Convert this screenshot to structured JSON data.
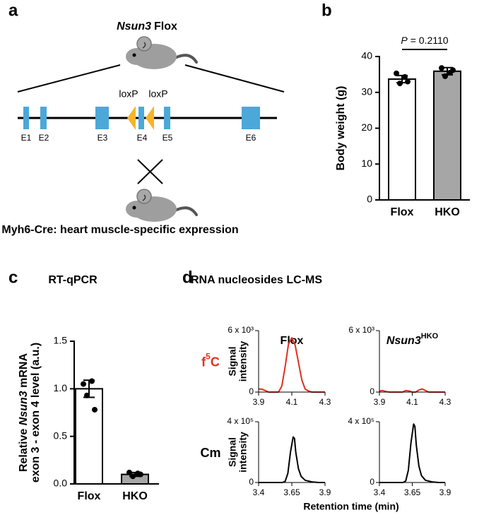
{
  "panel_labels": [
    "a",
    "b",
    "c",
    "d"
  ],
  "diagram": {
    "title_italic": "Nsun3",
    "title": "Flox",
    "exons": [
      "E1",
      "E2",
      "E3",
      "E4",
      "E5",
      "E6"
    ],
    "loxp": [
      "loxP",
      "loxP"
    ],
    "caption": "Myh6-Cre: heart muscle-specific expression"
  },
  "chart_data": [
    {
      "type": "bar",
      "ylabel": [
        [
          "Body weight (g)"
        ]
      ],
      "categories": [
        "Flox",
        "HKO"
      ],
      "values": [
        33.7,
        35.9
      ],
      "errors": [
        1.0,
        1.0
      ],
      "points": [
        [
          35.3,
          34.3,
          32.5,
          33.0
        ],
        [
          36.8,
          35.5,
          34.5,
          36.2
        ]
      ],
      "colors": [
        "#ffffff",
        "#a6a6a6"
      ],
      "ylim": [
        0,
        40
      ],
      "yticks": [
        0,
        10,
        20,
        30,
        40
      ],
      "annotation": {
        "italic": "P",
        "text": "= 0.2110"
      }
    },
    {
      "type": "bar",
      "title": "RT-qPCR",
      "ylabel": [
        [
          "Relative ",
          "Nsun3",
          " mRNA"
        ],
        [
          "exon 3 - exon 4 level (a.u.)"
        ]
      ],
      "categories": [
        "Flox",
        "HKO"
      ],
      "values": [
        1.0,
        0.1
      ],
      "errors": [
        0.09,
        0.02
      ],
      "points": [
        [
          1.05,
          1.08,
          0.93,
          0.78
        ],
        [
          0.12,
          0.11,
          0.08,
          0.1
        ]
      ],
      "colors": [
        "#ffffff",
        "#a6a6a6"
      ],
      "ylim": [
        0,
        1.5
      ],
      "yticks": [
        {
          "value": 0,
          "label": "0.0"
        },
        0.5,
        {
          "value": 1,
          "label": "1.0"
        },
        1.5
      ]
    },
    {
      "type": "chromatogram",
      "title": "RNA nucleosides LC-MS",
      "xlabel": "Retention time (min)",
      "ylabel": [
        "Signal",
        "intensity"
      ],
      "columns": [
        {
          "text": "Flox"
        },
        {
          "text": "Nsun3",
          "sup": "HKO"
        }
      ],
      "rows": [
        {
          "text": "f",
          "sup": "5",
          "after": "C",
          "color": "#e0301e"
        },
        {
          "text": "Cm",
          "color": "#000000"
        }
      ],
      "panels": [
        {
          "color": "#e0301e",
          "xlim": [
            3.9,
            4.3
          ],
          "xticks": [
            3.9,
            4.1,
            4.3
          ],
          "ylim": [
            0,
            6000
          ],
          "yticks": [
            0,
            {
              "value": 6000,
              "label": "6 x 10³"
            }
          ],
          "x": [
            3.9,
            3.92,
            3.94,
            3.96,
            3.98,
            4.0,
            4.02,
            4.04,
            4.06,
            4.08,
            4.1,
            4.12,
            4.14,
            4.16,
            4.18,
            4.2,
            4.22,
            4.24,
            4.26,
            4.28,
            4.3
          ],
          "values": [
            300,
            280,
            150,
            0,
            0,
            0,
            0,
            600,
            2500,
            4700,
            5300,
            4600,
            2900,
            1200,
            300,
            100,
            0,
            0,
            0,
            0,
            0
          ]
        },
        {
          "color": "#e0301e",
          "xlim": [
            3.9,
            4.3
          ],
          "xticks": [
            3.9,
            4.1,
            4.3
          ],
          "ylim": [
            0,
            6000
          ],
          "yticks": [
            0,
            {
              "value": 6000,
              "label": "6 x 10³"
            }
          ],
          "x": [
            3.9,
            3.92,
            3.94,
            3.96,
            3.98,
            4.0,
            4.02,
            4.04,
            4.06,
            4.08,
            4.1,
            4.12,
            4.14,
            4.16,
            4.18,
            4.2,
            4.22,
            4.24,
            4.26,
            4.28,
            4.3
          ],
          "values": [
            100,
            150,
            50,
            0,
            0,
            0,
            0,
            0,
            150,
            100,
            0,
            0,
            200,
            300,
            150,
            0,
            0,
            0,
            0,
            0,
            0
          ]
        },
        {
          "color": "#000000",
          "xlim": [
            3.4,
            3.9
          ],
          "xticks": [
            3.4,
            3.65,
            3.9
          ],
          "ylim": [
            0,
            400000
          ],
          "yticks": [
            0,
            {
              "value": 400000,
              "label": "4 x 10⁵"
            }
          ],
          "x": [
            3.4,
            3.5,
            3.58,
            3.6,
            3.62,
            3.64,
            3.66,
            3.67,
            3.68,
            3.7,
            3.72,
            3.75,
            3.8,
            3.85,
            3.9
          ],
          "values": [
            0,
            0,
            0,
            8000,
            60000,
            200000,
            300000,
            290000,
            200000,
            90000,
            40000,
            15000,
            4000,
            0,
            0
          ]
        },
        {
          "color": "#000000",
          "xlim": [
            3.4,
            3.9
          ],
          "xticks": [
            3.4,
            3.65,
            3.9
          ],
          "ylim": [
            0,
            400000
          ],
          "yticks": [
            0,
            {
              "value": 400000,
              "label": "4 x 10⁵"
            }
          ],
          "x": [
            3.4,
            3.5,
            3.58,
            3.6,
            3.62,
            3.64,
            3.66,
            3.67,
            3.68,
            3.7,
            3.72,
            3.75,
            3.8,
            3.85,
            3.9
          ],
          "values": [
            0,
            0,
            0,
            10000,
            80000,
            260000,
            385000,
            370000,
            250000,
            110000,
            45000,
            15000,
            4000,
            0,
            0
          ]
        }
      ]
    }
  ]
}
